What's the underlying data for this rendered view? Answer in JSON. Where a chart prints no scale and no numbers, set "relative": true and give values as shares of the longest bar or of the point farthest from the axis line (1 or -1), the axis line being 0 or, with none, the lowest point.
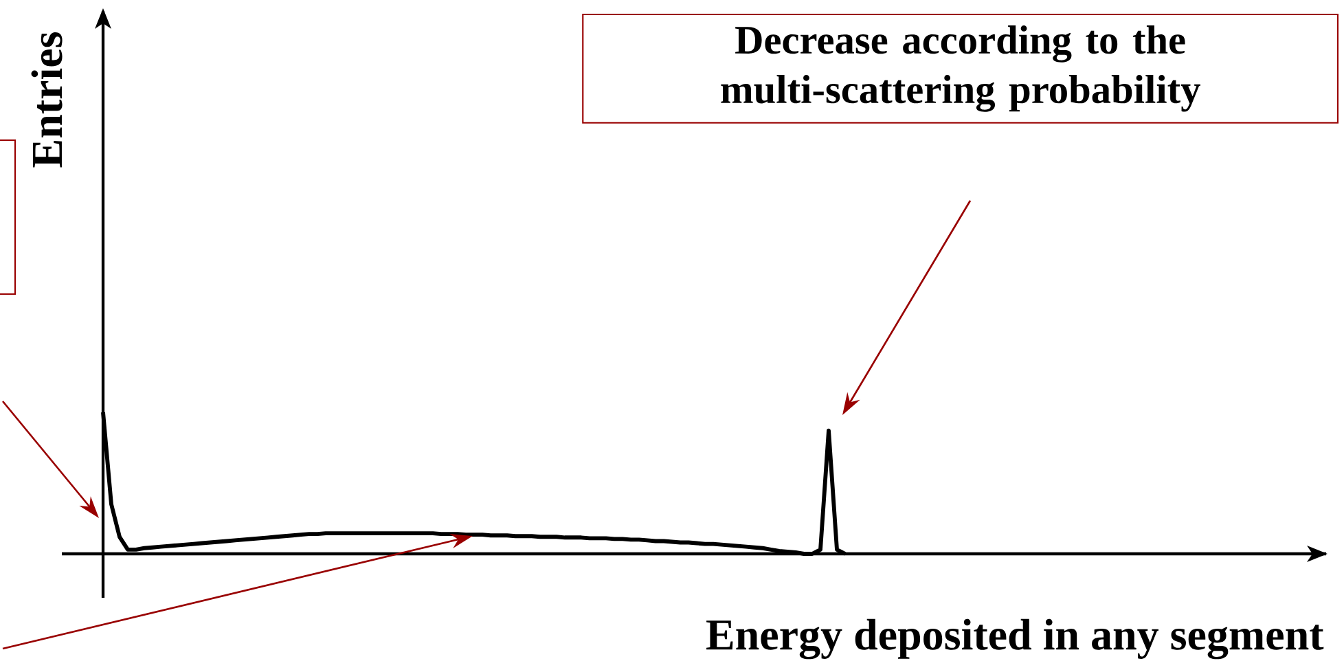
{
  "chart_data": {
    "type": "line",
    "relative": true,
    "xlabel": "Energy deposited in any segment",
    "annotations": [
      "Decrease according to the multi-scattering probability",
      "Entries"
    ],
    "categories": [
      null,
      null,
      null,
      null,
      null,
      null,
      null,
      null,
      null,
      null,
      null,
      null,
      null,
      null,
      null,
      null,
      null,
      null,
      null,
      null,
      null,
      null,
      null,
      null,
      null,
      null,
      null,
      null,
      null,
      null,
      null,
      null,
      null,
      null,
      null,
      null,
      null,
      null,
      null,
      null,
      null,
      null,
      null,
      null,
      null,
      null,
      null,
      null,
      null,
      null,
      null,
      null,
      null,
      null,
      null,
      null,
      null,
      null,
      null,
      null,
      null,
      null,
      null,
      null,
      null,
      null,
      null,
      null,
      null,
      null,
      null,
      null,
      null,
      null,
      null,
      null,
      null,
      null,
      null,
      null,
      null,
      null,
      null,
      null,
      null,
      null,
      null,
      null,
      null,
      null,
      null
    ],
    "series": [
      {
        "color": "#000000",
        "values": [
          1.0,
          0.35,
          0.12,
          0.03,
          0.03,
          0.04,
          0.045,
          0.05,
          0.055,
          0.06,
          0.065,
          0.07,
          0.075,
          0.08,
          0.085,
          0.09,
          0.095,
          0.1,
          0.105,
          0.11,
          0.115,
          0.12,
          0.125,
          0.13,
          0.135,
          0.14,
          0.14,
          0.145,
          0.145,
          0.145,
          0.145,
          0.145,
          0.145,
          0.145,
          0.145,
          0.145,
          0.145,
          0.145,
          0.145,
          0.145,
          0.145,
          0.14,
          0.14,
          0.14,
          0.135,
          0.135,
          0.135,
          0.13,
          0.13,
          0.13,
          0.125,
          0.125,
          0.125,
          0.12,
          0.12,
          0.12,
          0.115,
          0.115,
          0.115,
          0.11,
          0.11,
          0.11,
          0.105,
          0.105,
          0.1,
          0.1,
          0.095,
          0.09,
          0.09,
          0.085,
          0.08,
          0.08,
          0.075,
          0.07,
          0.07,
          0.065,
          0.06,
          0.055,
          0.05,
          0.045,
          0.04,
          0.03,
          0.02,
          0.015,
          0.01,
          0,
          0,
          0.03,
          0.87,
          0.03,
          0
        ]
      }
    ]
  }
}
